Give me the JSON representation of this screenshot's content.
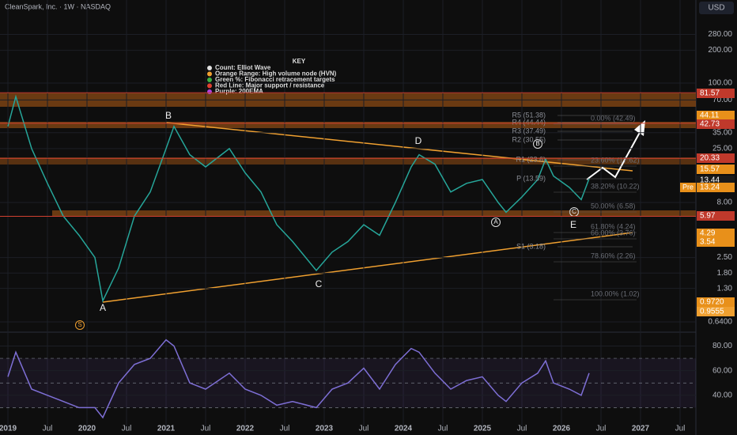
{
  "header": {
    "symbol": "CleanSpark, Inc. · 1W · NASDAQ",
    "currency": "USD"
  },
  "key": {
    "title": "KEY",
    "items": [
      {
        "text": "Count: Elliot Wave",
        "color": "#e0e0e0"
      },
      {
        "text": "Orange Range: High volume node (HVN)",
        "color": "#f0a030"
      },
      {
        "text": "Green %: Fibonacci retracement targets",
        "color": "#3cb043"
      },
      {
        "text": "Red Line: Major support / resistance",
        "color": "#e04030"
      },
      {
        "text": "Purple: 200EMA",
        "color": "#b040e0"
      }
    ]
  },
  "wave_labels": [
    "A",
    "B",
    "C",
    "D",
    "E",
    "A",
    "B",
    "C",
    "S"
  ],
  "fib_labels": [
    "0.00% (42.49)",
    "23.60% (17.62)",
    "38.20% (10.22)",
    "50.00% (6.58)",
    "61.80% (4.24)",
    "66.00% (3.76)",
    "78.60% (2.26)",
    "100.00% (1.02)"
  ],
  "pivot_labels": [
    "R5 (51.38)",
    "R4 (44.44)",
    "R3 (37.49)",
    "R2 (30.55)",
    "R1 (23.6)",
    "P (13.59)",
    "S1 (3.18)"
  ],
  "price_tags": [
    {
      "value": 81.57,
      "color": "#c0392b"
    },
    {
      "value": 44.11,
      "color": "#e8901a"
    },
    {
      "value": 42.73,
      "color": "#c0392b"
    },
    {
      "value": 20.33,
      "color": "#c0392b"
    },
    {
      "value": 15.57,
      "color": "#e8901a"
    },
    {
      "value": 13.44,
      "color": "#1a1a1a"
    },
    {
      "value": 13.24,
      "color": "#e8901a",
      "badge": "Pre"
    },
    {
      "value": 5.97,
      "color": "#c0392b"
    },
    {
      "value": 4.29,
      "color": "#e8901a"
    },
    {
      "value": 3.54,
      "color": "#e8901a"
    },
    {
      "value": {
        "value": 0.972,
        "label": "0.9720"
      },
      "color": "#e8901a"
    },
    {
      "value": {
        "value": 0.9555,
        "label": "0.9555"
      },
      "color": "#f0a030"
    }
  ],
  "chart_data": [
    {
      "type": "line",
      "color": "#26a69a",
      "log_scale": true,
      "x": [
        2019.0,
        2019.1,
        2019.3,
        2019.5,
        2019.7,
        2019.9,
        2020.1,
        2020.2,
        2020.4,
        2020.6,
        2020.8,
        2021.0,
        2021.1,
        2021.3,
        2021.5,
        2021.8,
        2022.0,
        2022.2,
        2022.4,
        2022.6,
        2022.9,
        2023.1,
        2023.3,
        2023.5,
        2023.7,
        2023.9,
        2024.1,
        2024.2,
        2024.4,
        2024.6,
        2024.8,
        2025.0,
        2025.2,
        2025.3,
        2025.5,
        2025.7,
        2025.8,
        2025.9,
        2026.1,
        2026.25,
        2026.35
      ],
      "values": [
        40,
        75,
        25,
        12,
        6,
        4,
        2.5,
        1.0,
        2.0,
        6,
        10,
        25,
        40,
        22,
        17,
        25,
        15,
        10,
        5,
        3.5,
        1.9,
        2.8,
        3.5,
        5,
        4,
        8,
        17,
        22,
        18,
        10,
        12,
        13,
        8,
        6.5,
        9,
        13,
        20,
        14,
        11,
        8.5,
        13.24
      ],
      "xlim": [
        2018.9,
        2027.7
      ],
      "xticks": [
        2019,
        {
          "value": 2019.5,
          "label": "Jul"
        },
        2020,
        {
          "value": 2020.5,
          "label": "Jul"
        },
        2021,
        {
          "value": 2021.5,
          "label": "Jul"
        },
        2022,
        {
          "value": 2022.5,
          "label": "Jul"
        },
        2023,
        {
          "value": 2023.5,
          "label": "Jul"
        },
        2024,
        {
          "value": 2024.5,
          "label": "Jul"
        },
        2025,
        {
          "value": 2025.5,
          "label": "Jul"
        },
        2026,
        {
          "value": 2026.5,
          "label": "Jul"
        },
        2027,
        {
          "value": 2027.5,
          "label": "Jul"
        }
      ],
      "ylim": [
        0.56,
        507
      ],
      "yticks": [
        {
          "value": 280,
          "label": "280.00"
        },
        {
          "value": 200,
          "label": "200.00"
        },
        {
          "value": 100,
          "label": "100.00"
        },
        {
          "value": 70,
          "label": "70.00"
        },
        {
          "value": 35,
          "label": "35.00"
        },
        {
          "value": 25,
          "label": "25.00"
        },
        {
          "value": 8,
          "label": "8.00"
        },
        {
          "value": 2.5,
          "label": "2.50"
        },
        {
          "value": 1.8,
          "label": "1.80"
        },
        {
          "value": 1.3,
          "label": "1.30"
        },
        {
          "value": 0.64,
          "label": "0.6400"
        }
      ]
    },
    {
      "type": "line",
      "color": "#7e6fd6",
      "x": [
        2019.0,
        2019.1,
        2019.3,
        2019.5,
        2019.7,
        2019.9,
        2020.1,
        2020.2,
        2020.4,
        2020.6,
        2020.8,
        2021.0,
        2021.1,
        2021.3,
        2021.5,
        2021.8,
        2022.0,
        2022.2,
        2022.4,
        2022.6,
        2022.9,
        2023.1,
        2023.3,
        2023.5,
        2023.7,
        2023.9,
        2024.1,
        2024.2,
        2024.4,
        2024.6,
        2024.8,
        2025.0,
        2025.2,
        2025.3,
        2025.5,
        2025.7,
        2025.8,
        2025.9,
        2026.1,
        2026.25,
        2026.35
      ],
      "values": [
        55,
        75,
        45,
        40,
        35,
        30,
        30,
        22,
        50,
        65,
        70,
        85,
        80,
        50,
        45,
        58,
        45,
        40,
        32,
        35,
        30,
        45,
        50,
        62,
        45,
        65,
        78,
        75,
        58,
        45,
        52,
        55,
        40,
        35,
        50,
        58,
        68,
        50,
        45,
        40,
        58
      ],
      "xlim": [
        2018.9,
        2027.7
      ],
      "ylim": [
        11,
        88
      ],
      "yticks": [
        {
          "value": 40,
          "label": "40.00"
        },
        {
          "value": 60,
          "label": "60.00"
        },
        {
          "value": 80,
          "label": "80.00"
        }
      ]
    }
  ]
}
